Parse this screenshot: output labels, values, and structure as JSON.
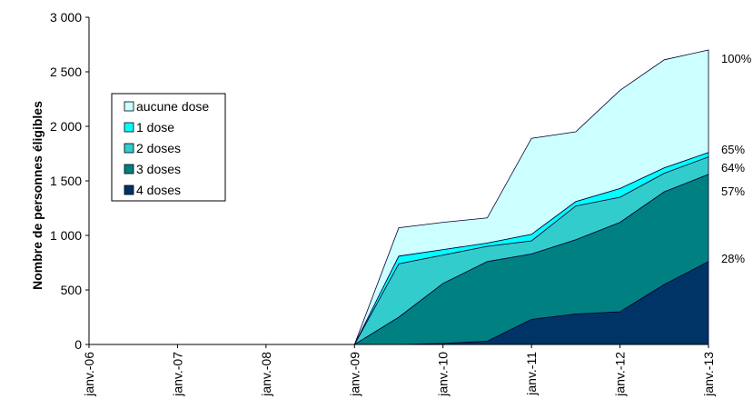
{
  "chart_data": {
    "type": "area",
    "stacked": true,
    "title": "",
    "xlabel": "",
    "ylabel": "Nombre de personnes éligibles",
    "ylim": [
      0,
      3000
    ],
    "y_ticks": [
      "0",
      "500",
      "1 000",
      "1 500",
      "2 000",
      "2 500",
      "3 000"
    ],
    "x_tick_labels": [
      "janv.-06",
      "janv.-07",
      "janv.-08",
      "janv.-09",
      "janv.-10",
      "janv.-11",
      "janv.-12",
      "janv.-13"
    ],
    "x": [
      2006.0,
      2007.0,
      2008.0,
      2009.0,
      2009.5,
      2010.0,
      2010.5,
      2011.0,
      2011.5,
      2012.0,
      2012.5,
      2013.0
    ],
    "series": [
      {
        "name": "4 doses",
        "color": "#003366",
        "values": [
          0,
          0,
          0,
          0,
          0,
          10,
          30,
          230,
          280,
          300,
          550,
          760
        ]
      },
      {
        "name": "3 doses",
        "color": "#008080",
        "values": [
          0,
          0,
          0,
          0,
          250,
          550,
          730,
          600,
          680,
          820,
          850,
          800
        ]
      },
      {
        "name": "2 doses",
        "color": "#33CCCC",
        "values": [
          0,
          0,
          0,
          0,
          490,
          260,
          140,
          120,
          310,
          230,
          170,
          160
        ]
      },
      {
        "name": "1 dose",
        "color": "#00FFFF",
        "values": [
          0,
          0,
          0,
          0,
          70,
          50,
          30,
          60,
          40,
          80,
          50,
          40
        ]
      },
      {
        "name": "aucune dose",
        "color": "#CCFFFF",
        "values": [
          0,
          0,
          0,
          0,
          260,
          250,
          230,
          880,
          640,
          900,
          990,
          940
        ]
      }
    ],
    "percent_labels": [
      "100%",
      "65%",
      "64%",
      "57%",
      "28%"
    ],
    "legend": {
      "placement": "top-left",
      "order": [
        "aucune dose",
        "1 dose",
        "2 doses",
        "3 doses",
        "4 doses"
      ]
    },
    "grid": false
  }
}
